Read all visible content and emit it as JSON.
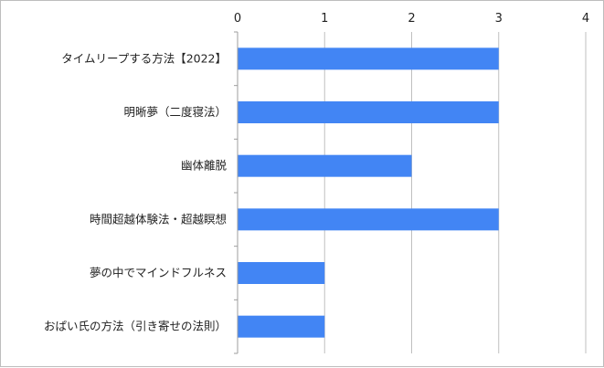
{
  "chart_data": {
    "type": "bar",
    "orientation": "horizontal",
    "categories": [
      "タイムリープする方法【2022】",
      "明晰夢（二度寝法）",
      "幽体離脱",
      "時間超越体験法・超越瞑想",
      "夢の中でマインドフルネス",
      "おぱい氏の方法（引き寄せの法則）"
    ],
    "values": [
      3,
      3,
      2,
      3,
      1,
      1
    ],
    "xlim": [
      0,
      4
    ],
    "xticks": [
      "0",
      "1",
      "2",
      "3",
      "4"
    ],
    "title": "",
    "xlabel": "",
    "ylabel": "",
    "grid": "vertical",
    "legend": "none",
    "bar_color": "#4285f4"
  }
}
